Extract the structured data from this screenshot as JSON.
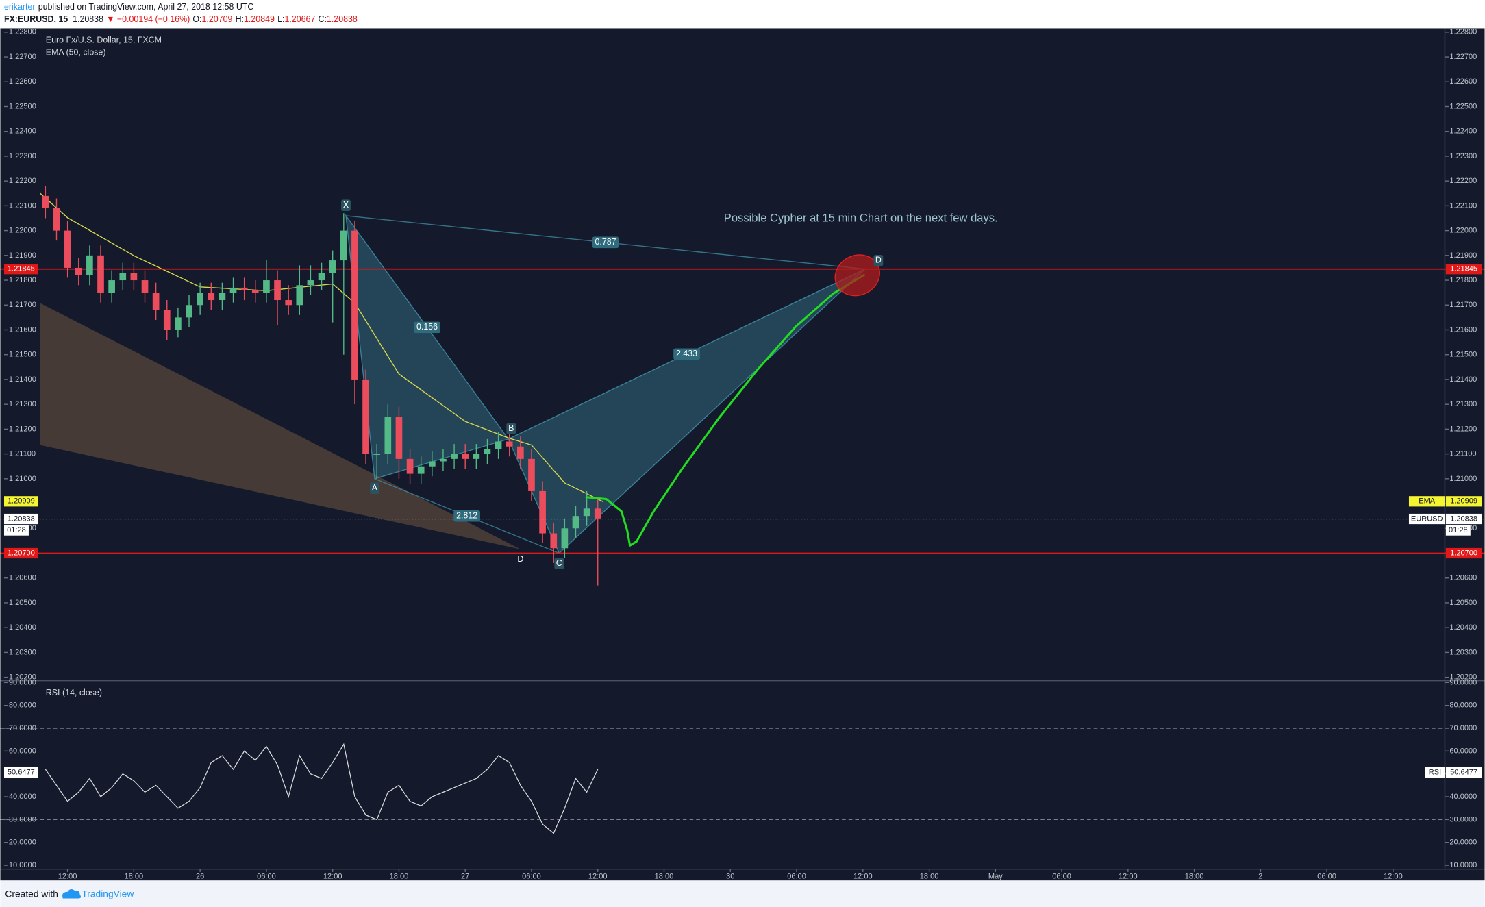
{
  "header": {
    "author": "erikarter",
    "published": "published on TradingView.com, April 27, 2018 12:58 UTC",
    "symbol": "FX:EURUSD, 15",
    "last": "1.20838",
    "change": "▼ −0.00194 (−0.16%)",
    "ohlc": [
      {
        "label": "O:",
        "value": "1.20709"
      },
      {
        "label": "H:",
        "value": "1.20849"
      },
      {
        "label": "L:",
        "value": "1.20667"
      },
      {
        "label": "C:",
        "value": "1.20838"
      }
    ]
  },
  "footer": {
    "text": "Created with",
    "brand": "TradingView"
  },
  "chart_data": [
    {
      "type": "candlestick",
      "title": "Euro Fx/U.S. Dollar, 15, FXCM",
      "x": [
        -2,
        -1,
        0,
        1,
        2,
        3,
        4,
        5,
        6,
        7,
        8,
        9,
        10,
        11,
        12,
        13,
        14,
        15,
        16,
        17,
        18,
        19,
        20,
        21,
        22,
        23,
        24,
        25,
        26,
        27,
        28,
        29,
        30,
        31,
        32,
        33,
        34,
        35,
        36,
        37,
        38,
        39,
        40,
        41,
        42,
        43,
        44,
        45,
        46,
        47,
        48
      ],
      "open": [
        1.2214,
        1.2209,
        1.22,
        1.2185,
        1.2182,
        1.219,
        1.2175,
        1.218,
        1.2183,
        1.218,
        1.2175,
        1.2168,
        1.216,
        1.2165,
        1.217,
        1.2175,
        1.2172,
        1.2175,
        1.2177,
        1.2176,
        1.2175,
        1.218,
        1.2172,
        1.217,
        1.2178,
        1.218,
        1.2183,
        1.2188,
        1.22,
        1.214,
        1.211,
        1.211,
        1.2125,
        1.2108,
        1.2102,
        1.2105,
        1.2107,
        1.2108,
        1.211,
        1.2108,
        1.211,
        1.2112,
        1.2115,
        1.2113,
        1.2108,
        1.2095,
        1.2078,
        1.2072,
        1.208,
        1.2085,
        1.2088
      ],
      "high": [
        1.2218,
        1.2213,
        1.2204,
        1.2189,
        1.2194,
        1.2194,
        1.2184,
        1.2187,
        1.2187,
        1.2184,
        1.2179,
        1.2172,
        1.2169,
        1.2174,
        1.2179,
        1.2179,
        1.2179,
        1.2181,
        1.2181,
        1.218,
        1.2188,
        1.2184,
        1.2178,
        1.2186,
        1.2186,
        1.2187,
        1.2192,
        1.2207,
        1.2204,
        1.2144,
        1.2114,
        1.213,
        1.2129,
        1.2112,
        1.2109,
        1.2111,
        1.2112,
        1.2114,
        1.2114,
        1.2114,
        1.2116,
        1.2119,
        1.2119,
        1.2117,
        1.2112,
        1.2099,
        1.2082,
        1.2084,
        1.2089,
        1.2095,
        1.2092
      ],
      "low": [
        1.2205,
        1.2196,
        1.2181,
        1.2178,
        1.2178,
        1.2171,
        1.2171,
        1.2176,
        1.2176,
        1.2171,
        1.2164,
        1.2156,
        1.2157,
        1.2161,
        1.2166,
        1.2168,
        1.2168,
        1.2171,
        1.2172,
        1.2171,
        1.2171,
        1.2162,
        1.2166,
        1.2166,
        1.2174,
        1.2176,
        1.2163,
        1.215,
        1.213,
        1.2106,
        1.21,
        1.2106,
        1.21,
        1.2098,
        1.2098,
        1.2101,
        1.2103,
        1.2104,
        1.2104,
        1.2104,
        1.2106,
        1.2108,
        1.2109,
        1.2104,
        1.2091,
        1.2074,
        1.2066,
        1.2068,
        1.2076,
        1.2081,
        1.2057
      ],
      "close": [
        1.2209,
        1.22,
        1.2185,
        1.2182,
        1.219,
        1.2175,
        1.218,
        1.2183,
        1.218,
        1.2175,
        1.2168,
        1.216,
        1.2165,
        1.217,
        1.2175,
        1.2172,
        1.2175,
        1.2177,
        1.2176,
        1.2175,
        1.218,
        1.2172,
        1.217,
        1.2178,
        1.218,
        1.2183,
        1.2188,
        1.22,
        1.214,
        1.211,
        1.211,
        1.2125,
        1.2108,
        1.2102,
        1.2105,
        1.2107,
        1.2108,
        1.211,
        1.2108,
        1.211,
        1.2112,
        1.2115,
        1.2113,
        1.2108,
        1.2095,
        1.2078,
        1.2072,
        1.208,
        1.2085,
        1.2088,
        1.2084
      ],
      "up_color": "#53b987",
      "down_color": "#eb4d5c",
      "xlim": [
        -5.4,
        124.6
      ],
      "ylim": [
        1.20186,
        1.22811
      ],
      "yticks": [
        {
          "value": 1.202,
          "label": "1.20200"
        },
        {
          "value": 1.203,
          "label": "1.20300"
        },
        {
          "value": 1.204,
          "label": "1.20400"
        },
        {
          "value": 1.205,
          "label": "1.20500"
        },
        {
          "value": 1.206,
          "label": "1.20600"
        },
        {
          "value": 1.207,
          "label": "1.20700"
        },
        {
          "value": 1.208,
          "label": "1.20800"
        },
        {
          "value": 1.209,
          "label": "1.20900"
        },
        {
          "value": 1.21,
          "label": "1.21000"
        },
        {
          "value": 1.211,
          "label": "1.21100"
        },
        {
          "value": 1.212,
          "label": "1.21200"
        },
        {
          "value": 1.213,
          "label": "1.21300"
        },
        {
          "value": 1.214,
          "label": "1.21400"
        },
        {
          "value": 1.215,
          "label": "1.21500"
        },
        {
          "value": 1.216,
          "label": "1.21600"
        },
        {
          "value": 1.217,
          "label": "1.21700"
        },
        {
          "value": 1.218,
          "label": "1.21800"
        },
        {
          "value": 1.219,
          "label": "1.21900"
        },
        {
          "value": 1.22,
          "label": "1.22000"
        },
        {
          "value": 1.221,
          "label": "1.22100"
        },
        {
          "value": 1.222,
          "label": "1.22200"
        },
        {
          "value": 1.223,
          "label": "1.22300"
        },
        {
          "value": 1.224,
          "label": "1.22400"
        },
        {
          "value": 1.225,
          "label": "1.22500"
        },
        {
          "value": 1.226,
          "label": "1.22600"
        },
        {
          "value": 1.227,
          "label": "1.22700"
        },
        {
          "value": 1.228,
          "label": "1.22800"
        }
      ],
      "grid": false,
      "ema": {
        "name": "EMA (50, close)",
        "color": "#d8d84a",
        "x": [
          -2.5,
          0,
          6,
          12,
          18,
          24,
          26,
          30,
          36,
          40,
          42,
          45,
          48.5
        ],
        "values": [
          1.22151,
          1.22052,
          1.21899,
          1.21773,
          1.21758,
          1.21785,
          1.21708,
          1.21422,
          1.21231,
          1.21163,
          1.21136,
          1.20983,
          1.20907
        ]
      },
      "hlines": {
        "color": "#e01818",
        "values": [
          1.21845,
          1.207
        ]
      },
      "price_tags": [
        {
          "value": 1.21845,
          "label": "1.21845",
          "color": "#e01818"
        },
        {
          "name": "EMA",
          "value": 1.20909,
          "label": "1.20909",
          "color": "#f5f532"
        },
        {
          "name": "EURUSD",
          "value": 1.20838,
          "label": "1.20838",
          "color": "#ffffff",
          "countdown": "01:28"
        },
        {
          "value": 1.207,
          "label": "1.20700",
          "color": "#e01818"
        }
      ],
      "pattern": {
        "color": "#3e8aa0",
        "points": [
          {
            "label": "X",
            "x": 25.2,
            "price": 1.2206
          },
          {
            "label": "A",
            "x": 27.8,
            "price": 1.21
          },
          {
            "label": "B",
            "x": 39.9,
            "price": 1.2116
          },
          {
            "label": "C",
            "x": 44.5,
            "price": 1.207
          },
          {
            "label": "D",
            "x": 72.2,
            "price": 1.21845
          }
        ],
        "ratios": [
          0.787,
          0.156,
          2.433,
          2.812
        ]
      },
      "second_pattern": {
        "label": "D",
        "color": "#6e5640",
        "points": [
          {
            "x": -2.49,
            "price": 1.21708
          },
          {
            "x": -2.49,
            "price": 1.21136
          },
          {
            "x": 41.0,
            "price": 1.20716
          }
        ]
      },
      "projection": {
        "color": "#22dd22",
        "x": [
          46.89,
          48.77,
          50.14,
          50.66,
          50.91,
          51.51,
          53.06,
          55.63,
          59.06,
          62.49,
          65.91,
          69.34,
          72.17
        ],
        "price": [
          1.20926,
          1.20918,
          1.20869,
          1.20792,
          1.20731,
          1.20747,
          1.20869,
          1.2104,
          1.2125,
          1.21441,
          1.21613,
          1.21747,
          1.21823
        ]
      },
      "highlight": {
        "x": 71.5,
        "price": 1.2182,
        "color": "#b01c1c"
      },
      "annotation": "Possible Cypher at 15 min Chart on the next few days."
    },
    {
      "type": "line",
      "title": "RSI (14, close)",
      "color": "#dcdcdc",
      "x": [
        -2,
        -1,
        0,
        1,
        2,
        3,
        4,
        5,
        6,
        7,
        8,
        9,
        10,
        11,
        12,
        13,
        14,
        15,
        16,
        17,
        18,
        19,
        20,
        21,
        22,
        23,
        24,
        25,
        26,
        27,
        28,
        29,
        30,
        31,
        32,
        33,
        34,
        35,
        36,
        37,
        38,
        39,
        40,
        41,
        42,
        43,
        44,
        45,
        46,
        47,
        48
      ],
      "values": [
        52,
        45,
        38,
        42,
        48,
        40,
        44,
        50,
        47,
        42,
        45,
        40,
        35,
        38,
        44,
        55,
        58,
        52,
        60,
        56,
        62,
        54,
        40,
        58,
        50,
        48,
        55,
        63,
        40,
        32,
        30,
        42,
        45,
        38,
        36,
        40,
        42,
        44,
        46,
        48,
        52,
        58,
        55,
        45,
        38,
        28,
        24,
        35,
        48,
        42,
        52
      ],
      "xlim": [
        -5.4,
        124.6
      ],
      "ylim": [
        8.3,
        90.8
      ],
      "yticks": [
        {
          "value": 10,
          "label": "10.0000"
        },
        {
          "value": 20,
          "label": "20.0000"
        },
        {
          "value": 30,
          "label": "30.0000"
        },
        {
          "value": 40,
          "label": "40.0000"
        },
        {
          "value": 50,
          "label": "50.0000"
        },
        {
          "value": 60,
          "label": "60.0000"
        },
        {
          "value": 70,
          "label": "70.0000"
        },
        {
          "value": 80,
          "label": "80.0000"
        },
        {
          "value": 90,
          "label": "90.0000"
        }
      ],
      "levels": [
        70,
        30
      ],
      "tag": {
        "name": "RSI",
        "value": 50.6477,
        "color": "#ffffff"
      },
      "xticks": [
        {
          "value": 0,
          "label": "12:00"
        },
        {
          "value": 6,
          "label": "18:00"
        },
        {
          "value": 12,
          "label": "26"
        },
        {
          "value": 18,
          "label": "06:00"
        },
        {
          "value": 24,
          "label": "12:00"
        },
        {
          "value": 30,
          "label": "18:00"
        },
        {
          "value": 36,
          "label": "27"
        },
        {
          "value": 42,
          "label": "06:00"
        },
        {
          "value": 48,
          "label": "12:00"
        },
        {
          "value": 54,
          "label": "18:00"
        },
        {
          "value": 60,
          "label": "30"
        },
        {
          "value": 66,
          "label": "06:00"
        },
        {
          "value": 72,
          "label": "12:00"
        },
        {
          "value": 78,
          "label": "18:00"
        },
        {
          "value": 84,
          "label": "May"
        },
        {
          "value": 90,
          "label": "06:00"
        },
        {
          "value": 96,
          "label": "12:00"
        },
        {
          "value": 102,
          "label": "18:00"
        },
        {
          "value": 108,
          "label": "2"
        },
        {
          "value": 114,
          "label": "06:00"
        },
        {
          "value": 120,
          "label": "12:00"
        }
      ]
    }
  ]
}
